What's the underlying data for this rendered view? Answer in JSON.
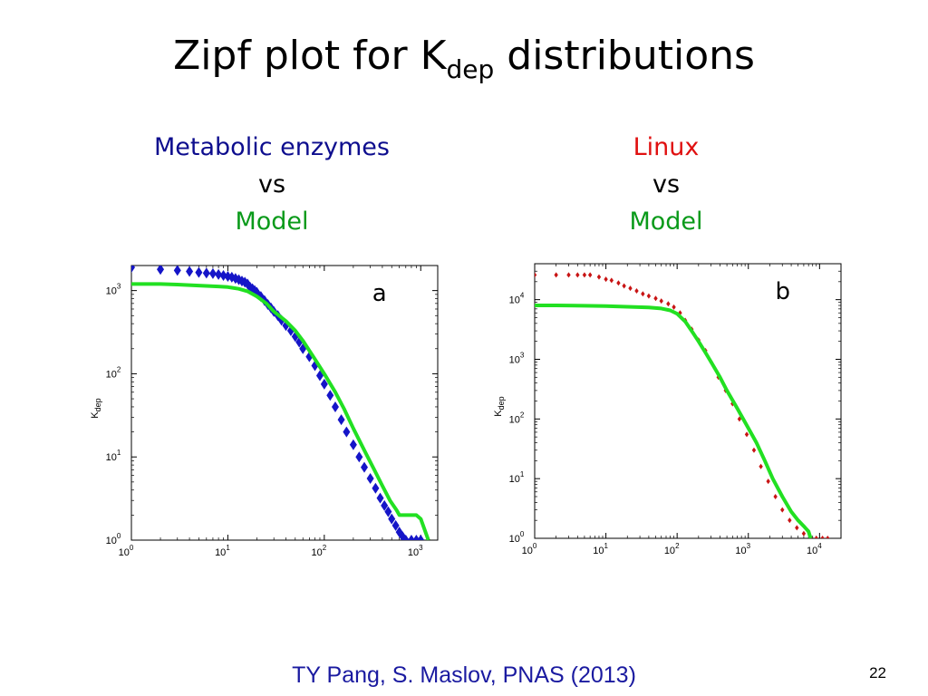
{
  "slide": {
    "title_main": "Zipf plot for K",
    "title_sub": "dep",
    "title_rest": " distributions",
    "caption_a": {
      "line1": "Metabolic enzymes",
      "line2": "vs",
      "line3": "Model"
    },
    "caption_b": {
      "line1": "Linux",
      "line2": "vs",
      "line3": "Model"
    },
    "footer": "TY Pang, S. Maslov, PNAS  (2013)",
    "page_number": "22"
  },
  "colors": {
    "enzymes": "#1515c8",
    "linux": "#c81414",
    "model": "#22e022"
  },
  "chart_data": [
    {
      "type": "scatter",
      "panel_label": "a",
      "ylabel_main": "K",
      "ylabel_sub": "dep",
      "xscale": "log",
      "yscale": "log",
      "xlim": [
        1,
        1500
      ],
      "ylim": [
        1,
        2000
      ],
      "xticks": [
        {
          "base": "10",
          "exp": "0",
          "value": 1
        },
        {
          "base": "10",
          "exp": "1",
          "value": 10
        },
        {
          "base": "10",
          "exp": "2",
          "value": 100
        },
        {
          "base": "10",
          "exp": "3",
          "value": 1000
        }
      ],
      "yticks": [
        {
          "base": "10",
          "exp": "0",
          "value": 1
        },
        {
          "base": "10",
          "exp": "1",
          "value": 10
        },
        {
          "base": "10",
          "exp": "2",
          "value": 100
        },
        {
          "base": "10",
          "exp": "3",
          "value": 1000
        }
      ],
      "series": [
        {
          "role": "data",
          "marker": "diamond",
          "x": [
            1,
            2,
            3,
            4,
            5,
            6,
            7,
            8,
            9,
            10,
            11,
            12,
            13,
            14,
            15,
            16,
            17,
            18,
            19,
            20,
            22,
            24,
            26,
            28,
            30,
            33,
            36,
            40,
            45,
            50,
            55,
            60,
            70,
            80,
            90,
            100,
            115,
            130,
            150,
            170,
            200,
            230,
            260,
            300,
            340,
            380,
            420,
            460,
            500,
            550,
            600,
            650,
            700,
            800,
            900,
            1000
          ],
          "y": [
            1900,
            1800,
            1750,
            1700,
            1650,
            1620,
            1600,
            1560,
            1520,
            1480,
            1450,
            1400,
            1350,
            1300,
            1260,
            1200,
            1100,
            1050,
            1000,
            950,
            850,
            760,
            680,
            620,
            560,
            500,
            440,
            380,
            330,
            280,
            240,
            200,
            160,
            125,
            95,
            75,
            55,
            40,
            28,
            20,
            14,
            10,
            7.5,
            5.5,
            4.2,
            3.2,
            2.6,
            2.2,
            1.8,
            1.5,
            1.25,
            1.1,
            1,
            1,
            1,
            1
          ]
        },
        {
          "role": "model",
          "marker": "line",
          "x": [
            1,
            2,
            3,
            5,
            8,
            10,
            13,
            16,
            20,
            25,
            30,
            40,
            50,
            60,
            80,
            100,
            130,
            160,
            200,
            260,
            330,
            400,
            480,
            560,
            600,
            650,
            700,
            800,
            900,
            1000,
            1200
          ],
          "y": [
            1200,
            1200,
            1180,
            1150,
            1120,
            1100,
            1050,
            980,
            850,
            700,
            560,
            430,
            330,
            250,
            150,
            100,
            60,
            38,
            22,
            12,
            7,
            4.5,
            3,
            2.3,
            2,
            2,
            2,
            2,
            2,
            1.8,
            1
          ]
        }
      ]
    },
    {
      "type": "scatter",
      "panel_label": "b",
      "ylabel_main": "K",
      "ylabel_sub": "dep",
      "xscale": "log",
      "yscale": "log",
      "xlim": [
        1,
        20000
      ],
      "ylim": [
        1,
        40000
      ],
      "xticks": [
        {
          "base": "10",
          "exp": "0",
          "value": 1
        },
        {
          "base": "10",
          "exp": "1",
          "value": 10
        },
        {
          "base": "10",
          "exp": "2",
          "value": 100
        },
        {
          "base": "10",
          "exp": "3",
          "value": 1000
        },
        {
          "base": "10",
          "exp": "4",
          "value": 10000
        }
      ],
      "yticks": [
        {
          "base": "10",
          "exp": "0",
          "value": 1
        },
        {
          "base": "10",
          "exp": "1",
          "value": 10
        },
        {
          "base": "10",
          "exp": "2",
          "value": 100
        },
        {
          "base": "10",
          "exp": "3",
          "value": 1000
        },
        {
          "base": "10",
          "exp": "4",
          "value": 10000
        }
      ],
      "series": [
        {
          "role": "data",
          "marker": "dot",
          "x": [
            1,
            2,
            3,
            4,
            5,
            6,
            8,
            10,
            12,
            15,
            18,
            22,
            27,
            33,
            40,
            50,
            60,
            75,
            90,
            110,
            130,
            160,
            200,
            250,
            300,
            380,
            480,
            600,
            750,
            950,
            1200,
            1500,
            1900,
            2400,
            3000,
            3800,
            4800,
            6000,
            7500,
            9000,
            11000,
            13000
          ],
          "y": [
            26000,
            26000,
            26000,
            26000,
            26000,
            26000,
            24000,
            22000,
            21000,
            19000,
            17000,
            15500,
            14000,
            12500,
            11500,
            10500,
            9500,
            8500,
            7500,
            6000,
            4500,
            3200,
            2100,
            1400,
            900,
            500,
            300,
            180,
            100,
            55,
            30,
            16,
            9,
            5,
            3,
            2,
            1.5,
            1.2,
            1,
            1,
            1,
            1
          ]
        },
        {
          "role": "model",
          "marker": "line",
          "x": [
            1,
            2,
            5,
            10,
            20,
            40,
            60,
            80,
            100,
            130,
            160,
            200,
            250,
            300,
            400,
            500,
            700,
            1000,
            1300,
            1700,
            2200,
            3000,
            4000,
            5000,
            6000,
            7000,
            7500
          ],
          "y": [
            8000,
            8000,
            7900,
            7800,
            7600,
            7400,
            7100,
            6600,
            5800,
            4300,
            3000,
            2000,
            1300,
            900,
            500,
            300,
            150,
            70,
            40,
            20,
            10,
            5,
            2.8,
            2,
            1.6,
            1.3,
            1
          ]
        }
      ]
    }
  ]
}
